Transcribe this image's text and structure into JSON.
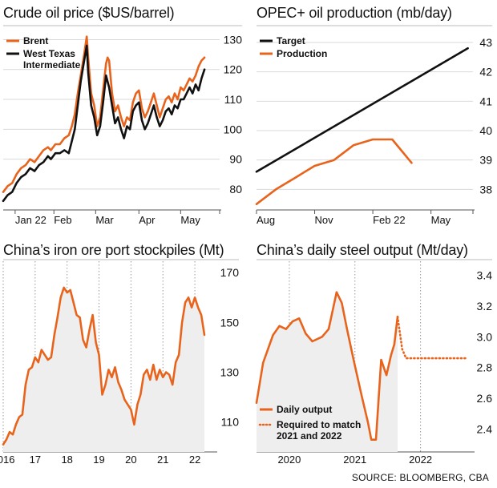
{
  "source": "SOURCE: BLOOMBERG, CBA",
  "colors": {
    "orange": "#e8641c",
    "black": "#111111",
    "grid": "#d9d9d9",
    "fill": "#eeeeee"
  },
  "chart_data": [
    {
      "type": "line",
      "title": "Crude oil price ($US/barrel)",
      "ylim": [
        73,
        132
      ],
      "xlim": [
        0,
        143
      ],
      "yticks": [
        80,
        90,
        100,
        110,
        120,
        130
      ],
      "xticks": [
        {
          "label": "Jan 22",
          "x": 8
        },
        {
          "label": "Feb",
          "x": 34
        },
        {
          "label": "Mar",
          "x": 62
        },
        {
          "label": "Apr",
          "x": 91
        },
        {
          "label": "May",
          "x": 119
        }
      ],
      "legend": "top-left",
      "series": [
        {
          "name": "Brent",
          "color": "#e8641c",
          "points": [
            [
              0,
              79
            ],
            [
              3,
              81
            ],
            [
              6,
              82
            ],
            [
              9,
              85
            ],
            [
              12,
              87
            ],
            [
              15,
              88
            ],
            [
              18,
              90
            ],
            [
              21,
              89
            ],
            [
              24,
              91
            ],
            [
              27,
              93
            ],
            [
              30,
              94
            ],
            [
              32,
              93
            ],
            [
              35,
              95
            ],
            [
              38,
              95
            ],
            [
              41,
              97
            ],
            [
              44,
              98
            ],
            [
              46,
              101
            ],
            [
              48,
              105
            ],
            [
              50,
              112
            ],
            [
              52,
              118
            ],
            [
              54,
              124
            ],
            [
              56,
              131
            ],
            [
              57,
              124
            ],
            [
              59,
              112
            ],
            [
              61,
              108
            ],
            [
              63,
              101
            ],
            [
              65,
              104
            ],
            [
              67,
              113
            ],
            [
              69,
              122
            ],
            [
              70,
              124
            ],
            [
              71,
              123
            ],
            [
              73,
              112
            ],
            [
              75,
              106
            ],
            [
              77,
              108
            ],
            [
              79,
              104
            ],
            [
              81,
              101
            ],
            [
              83,
              104
            ],
            [
              85,
              103
            ],
            [
              87,
              109
            ],
            [
              89,
              112
            ],
            [
              91,
              113
            ],
            [
              93,
              107
            ],
            [
              95,
              104
            ],
            [
              97,
              106
            ],
            [
              99,
              109
            ],
            [
              101,
              112
            ],
            [
              103,
              108
            ],
            [
              105,
              104
            ],
            [
              107,
              107
            ],
            [
              109,
              110
            ],
            [
              111,
              111
            ],
            [
              113,
              109
            ],
            [
              115,
              112
            ],
            [
              117,
              110
            ],
            [
              119,
              114
            ],
            [
              121,
              113
            ],
            [
              123,
              115
            ],
            [
              125,
              117
            ],
            [
              127,
              116
            ],
            [
              129,
              118
            ],
            [
              131,
              121
            ],
            [
              133,
              123
            ],
            [
              135,
              124
            ]
          ]
        },
        {
          "name": "West Texas Intermediate",
          "color": "#111111",
          "points": [
            [
              0,
              76
            ],
            [
              3,
              78
            ],
            [
              6,
              79
            ],
            [
              9,
              82
            ],
            [
              12,
              84
            ],
            [
              15,
              85
            ],
            [
              18,
              87
            ],
            [
              21,
              86
            ],
            [
              24,
              88
            ],
            [
              27,
              89
            ],
            [
              30,
              91
            ],
            [
              32,
              90
            ],
            [
              35,
              92
            ],
            [
              38,
              92
            ],
            [
              41,
              93
            ],
            [
              44,
              92
            ],
            [
              46,
              96
            ],
            [
              48,
              100
            ],
            [
              50,
              108
            ],
            [
              52,
              116
            ],
            [
              54,
              122
            ],
            [
              56,
              128
            ],
            [
              57,
              119
            ],
            [
              59,
              108
            ],
            [
              61,
              104
            ],
            [
              63,
              98
            ],
            [
              65,
              101
            ],
            [
              67,
              109
            ],
            [
              69,
              118
            ],
            [
              70,
              116
            ],
            [
              71,
              114
            ],
            [
              73,
              108
            ],
            [
              75,
              102
            ],
            [
              77,
              104
            ],
            [
              79,
              100
            ],
            [
              81,
              97
            ],
            [
              83,
              101
            ],
            [
              85,
              100
            ],
            [
              87,
              106
            ],
            [
              89,
              108
            ],
            [
              91,
              109
            ],
            [
              93,
              103
            ],
            [
              95,
              100
            ],
            [
              97,
              102
            ],
            [
              99,
              105
            ],
            [
              101,
              108
            ],
            [
              103,
              104
            ],
            [
              105,
              101
            ],
            [
              107,
              103
            ],
            [
              109,
              106
            ],
            [
              111,
              107
            ],
            [
              113,
              105
            ],
            [
              115,
              108
            ],
            [
              117,
              107
            ],
            [
              119,
              110
            ],
            [
              121,
              110
            ],
            [
              123,
              112
            ],
            [
              125,
              114
            ],
            [
              127,
              112
            ],
            [
              129,
              115
            ],
            [
              131,
              113
            ],
            [
              133,
              117
            ],
            [
              135,
              120
            ]
          ]
        }
      ]
    },
    {
      "type": "line",
      "title": "OPEC+ oil production (mb/day)",
      "ylim": [
        37.3,
        43.3
      ],
      "xlim": [
        0,
        11
      ],
      "yticks": [
        38,
        39,
        40,
        41,
        42,
        43
      ],
      "xticks": [
        {
          "label": "Aug",
          "x": 0
        },
        {
          "label": "Nov",
          "x": 3
        },
        {
          "label": "Feb 22",
          "x": 6
        },
        {
          "label": "May",
          "x": 9
        }
      ],
      "legend": "top-left",
      "series": [
        {
          "name": "Target",
          "color": "#111111",
          "points": [
            [
              0,
              38.6
            ],
            [
              10.9,
              42.8
            ]
          ]
        },
        {
          "name": "Production",
          "color": "#e8641c",
          "points": [
            [
              0,
              37.5
            ],
            [
              1,
              38.0
            ],
            [
              2,
              38.4
            ],
            [
              3,
              38.8
            ],
            [
              4,
              39.0
            ],
            [
              5,
              39.5
            ],
            [
              6,
              39.7
            ],
            [
              7,
              39.7
            ],
            [
              8,
              38.9
            ]
          ]
        }
      ]
    },
    {
      "type": "area",
      "title": "China’s iron ore port stockpiles (Mt)",
      "ylim": [
        98,
        172
      ],
      "xlim": [
        2016,
        2022.55
      ],
      "yticks": [
        110,
        130,
        150,
        170
      ],
      "xticks": [
        {
          "label": "2016",
          "x": 2016
        },
        {
          "label": "17",
          "x": 2017
        },
        {
          "label": "18",
          "x": 2018
        },
        {
          "label": "19",
          "x": 2019
        },
        {
          "label": "20",
          "x": 2020
        },
        {
          "label": "21",
          "x": 2021
        },
        {
          "label": "22",
          "x": 2022
        }
      ],
      "grid": "vertical-dotted",
      "series": [
        {
          "name": "",
          "color": "#e8641c",
          "points": [
            [
              2016.0,
              101
            ],
            [
              2016.1,
              103
            ],
            [
              2016.2,
              106
            ],
            [
              2016.3,
              105
            ],
            [
              2016.4,
              109
            ],
            [
              2016.5,
              112
            ],
            [
              2016.6,
              113
            ],
            [
              2016.7,
              125
            ],
            [
              2016.8,
              131
            ],
            [
              2016.9,
              132
            ],
            [
              2017.0,
              136
            ],
            [
              2017.1,
              134
            ],
            [
              2017.2,
              139
            ],
            [
              2017.3,
              137
            ],
            [
              2017.4,
              135
            ],
            [
              2017.5,
              136
            ],
            [
              2017.6,
              145
            ],
            [
              2017.7,
              152
            ],
            [
              2017.8,
              160
            ],
            [
              2017.9,
              164
            ],
            [
              2018.0,
              162
            ],
            [
              2018.1,
              163
            ],
            [
              2018.2,
              158
            ],
            [
              2018.3,
              153
            ],
            [
              2018.4,
              152
            ],
            [
              2018.5,
              143
            ],
            [
              2018.6,
              140
            ],
            [
              2018.7,
              147
            ],
            [
              2018.8,
              153
            ],
            [
              2018.9,
              142
            ],
            [
              2019.0,
              137
            ],
            [
              2019.1,
              121
            ],
            [
              2019.2,
              125
            ],
            [
              2019.3,
              131
            ],
            [
              2019.4,
              128
            ],
            [
              2019.5,
              132
            ],
            [
              2019.6,
              126
            ],
            [
              2019.7,
              123
            ],
            [
              2019.8,
              119
            ],
            [
              2019.9,
              117
            ],
            [
              2020.0,
              115
            ],
            [
              2020.1,
              109
            ],
            [
              2020.2,
              117
            ],
            [
              2020.3,
              121
            ],
            [
              2020.4,
              129
            ],
            [
              2020.5,
              131
            ],
            [
              2020.6,
              127
            ],
            [
              2020.7,
              133
            ],
            [
              2020.8,
              127
            ],
            [
              2020.9,
              131
            ],
            [
              2021.0,
              128
            ],
            [
              2021.1,
              130
            ],
            [
              2021.2,
              129
            ],
            [
              2021.3,
              125
            ],
            [
              2021.4,
              134
            ],
            [
              2021.5,
              137
            ],
            [
              2021.6,
              150
            ],
            [
              2021.7,
              158
            ],
            [
              2021.8,
              160
            ],
            [
              2021.9,
              156
            ],
            [
              2022.0,
              160
            ],
            [
              2022.1,
              156
            ],
            [
              2022.2,
              153
            ],
            [
              2022.3,
              145
            ]
          ]
        }
      ]
    },
    {
      "type": "area",
      "title": "China’s daily steel output (Mt/day)",
      "ylim": [
        2.25,
        3.45
      ],
      "xlim": [
        2019.5,
        2022.75
      ],
      "yticks": [
        2.4,
        2.6,
        2.8,
        3.0,
        3.2,
        3.4
      ],
      "ytick_labels": [
        "2.4",
        "2.6",
        "2.8",
        "3.0",
        "3.2",
        "3.4"
      ],
      "xticks": [
        {
          "label": "2020",
          "x": 2020
        },
        {
          "label": "2021",
          "x": 2021
        },
        {
          "label": "2022",
          "x": 2022
        }
      ],
      "grid": "vertical-dotted",
      "legend": "bottom-left",
      "series": [
        {
          "name": "Daily output",
          "color": "#e8641c",
          "style": "solid",
          "points": [
            [
              2019.5,
              2.57
            ],
            [
              2019.6,
              2.83
            ],
            [
              2019.75,
              3.01
            ],
            [
              2019.85,
              3.07
            ],
            [
              2019.95,
              3.05
            ],
            [
              2020.05,
              3.1
            ],
            [
              2020.15,
              3.12
            ],
            [
              2020.25,
              3.02
            ],
            [
              2020.35,
              2.97
            ],
            [
              2020.5,
              3.0
            ],
            [
              2020.6,
              3.05
            ],
            [
              2020.72,
              3.29
            ],
            [
              2020.8,
              3.22
            ],
            [
              2020.88,
              3.05
            ],
            [
              2020.98,
              2.85
            ],
            [
              2021.1,
              2.62
            ],
            [
              2021.2,
              2.44
            ],
            [
              2021.25,
              2.33
            ],
            [
              2021.32,
              2.33
            ],
            [
              2021.4,
              2.85
            ],
            [
              2021.48,
              2.75
            ],
            [
              2021.55,
              2.88
            ],
            [
              2021.6,
              2.95
            ],
            [
              2021.65,
              3.13
            ]
          ]
        },
        {
          "name": "Required to match 2021 and 2022",
          "color": "#e8641c",
          "style": "dotted",
          "points": [
            [
              2021.65,
              3.13
            ],
            [
              2021.72,
              2.92
            ],
            [
              2021.78,
              2.86
            ],
            [
              2022.7,
              2.86
            ]
          ]
        }
      ]
    }
  ]
}
